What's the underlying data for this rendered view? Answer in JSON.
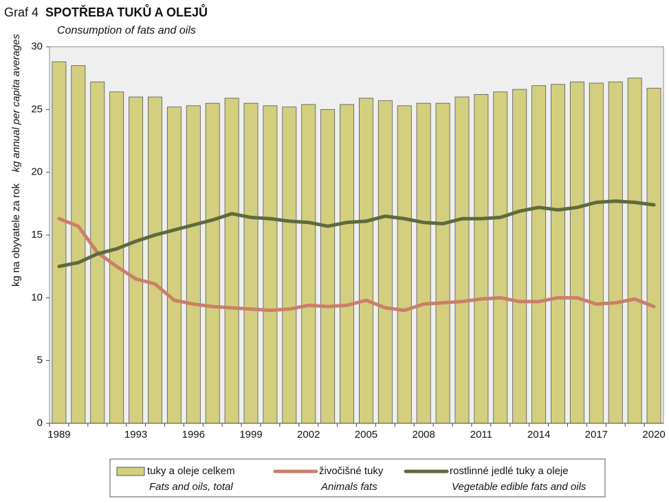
{
  "chart_data": {
    "type": "bar_line",
    "title_label": "Graf 4",
    "title": "SPOTŘEBA TUKŮ A OLEJŮ",
    "subtitle": "Consumption of fats and oils",
    "y_label": "kg na obyvatele za rok",
    "y_label_en": "kg annual per capita averages",
    "categories": [
      "1989",
      null,
      null,
      null,
      "1993",
      null,
      null,
      "1996",
      null,
      null,
      "1999",
      null,
      null,
      "2002",
      null,
      null,
      "2005",
      null,
      null,
      "2008",
      null,
      null,
      "2011",
      null,
      null,
      "2014",
      null,
      null,
      "2017",
      null,
      null,
      "2020"
    ],
    "series": [
      {
        "name": "tuky a oleje celkem",
        "name_en": "Fats and oils, total",
        "kind": "bar",
        "color": "#d3cf7f",
        "values": [
          28.8,
          28.5,
          27.2,
          26.4,
          26.0,
          26.0,
          25.2,
          25.3,
          25.5,
          25.9,
          25.5,
          25.3,
          25.2,
          25.4,
          25.0,
          25.4,
          25.9,
          25.7,
          25.3,
          25.5,
          25.5,
          26.0,
          26.2,
          26.4,
          26.6,
          26.9,
          27.0,
          27.2,
          27.1,
          27.2,
          27.5,
          26.7
        ]
      },
      {
        "name": "živočišné tuky",
        "name_en": "Animals fats",
        "kind": "line",
        "color": "#c8806a",
        "values": [
          16.3,
          15.7,
          13.6,
          12.5,
          11.5,
          11.1,
          9.8,
          9.5,
          9.3,
          9.2,
          9.1,
          9.0,
          9.1,
          9.4,
          9.3,
          9.4,
          9.8,
          9.2,
          9.0,
          9.5,
          9.6,
          9.7,
          9.9,
          10.0,
          9.7,
          9.7,
          10.0,
          10.0,
          9.5,
          9.6,
          9.9,
          9.3
        ]
      },
      {
        "name": "rostlinné jedlé tuky a oleje",
        "name_en": "Vegetable edible fats and oils",
        "kind": "line",
        "color": "#5f6a3c",
        "values": [
          12.5,
          12.8,
          13.5,
          13.9,
          14.5,
          15.0,
          15.4,
          15.8,
          16.2,
          16.7,
          16.4,
          16.3,
          16.1,
          16.0,
          15.7,
          16.0,
          16.1,
          16.5,
          16.3,
          16.0,
          15.9,
          16.3,
          16.3,
          16.4,
          16.9,
          17.2,
          17.0,
          17.2,
          17.6,
          17.7,
          17.6,
          17.4
        ]
      }
    ],
    "ylim": [
      0,
      30
    ],
    "yticks": [
      0,
      5,
      10,
      15,
      20,
      25,
      30
    ]
  }
}
